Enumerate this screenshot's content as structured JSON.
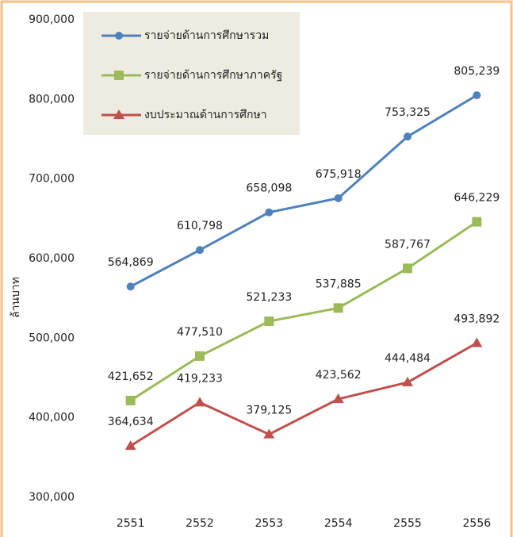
{
  "chart_data": {
    "type": "line",
    "y_label": "ล้านบาท",
    "categories": [
      "2551",
      "2552",
      "2553",
      "2554",
      "2555",
      "2556"
    ],
    "series": [
      {
        "name": "รายจ่ายด้านการศึกษารวม",
        "color": "#4f81bd",
        "marker": "circle",
        "values": [
          564869,
          610798,
          658098,
          675918,
          753325,
          805239
        ],
        "value_labels": [
          "564,869",
          "610,798",
          "658,098",
          "675,918",
          "753,325",
          "805,239"
        ]
      },
      {
        "name": "รายจ่ายด้านการศึกษาภาครัฐ",
        "color": "#9bbb59",
        "marker": "square",
        "values": [
          421652,
          477510,
          521233,
          537885,
          587767,
          646229
        ],
        "value_labels": [
          "421,652",
          "477,510",
          "521,233",
          "537,885",
          "587,767",
          "646,229"
        ]
      },
      {
        "name": "งบประมาณด้านการศึกษา",
        "color": "#c0504d",
        "marker": "triangle",
        "values": [
          364634,
          419233,
          379125,
          423562,
          444484,
          493892
        ],
        "value_labels": [
          "364,634",
          "419,233",
          "379,125",
          "423,562",
          "444,484",
          "493,892"
        ]
      }
    ],
    "ylim": [
      300000,
      900000
    ],
    "yticks": [
      {
        "value": 300000,
        "label": "300,000"
      },
      {
        "value": 400000,
        "label": "400,000"
      },
      {
        "value": 500000,
        "label": "500,000"
      },
      {
        "value": 600000,
        "label": "600,000"
      },
      {
        "value": 700000,
        "label": "700,000"
      },
      {
        "value": 800000,
        "label": "800,000"
      },
      {
        "value": 900000,
        "label": "900,000"
      }
    ],
    "legend": "top-left"
  }
}
